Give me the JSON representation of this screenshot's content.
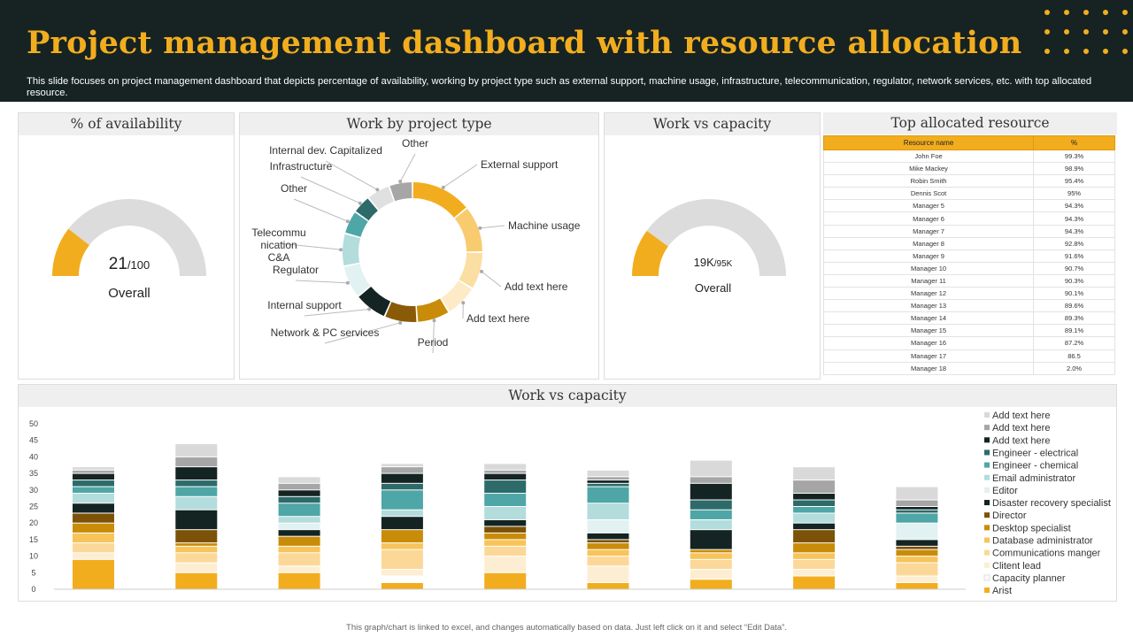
{
  "header": {
    "title": "Project management dashboard with resource allocation",
    "subtitle": "This slide focuses on project management dashboard that depicts percentage of availability, working by project type  such as external support, machine usage, infrastructure, telecommunication, regulator, network services, etc. with top allocated resource."
  },
  "availability": {
    "title": "% of availability",
    "value": "21",
    "total": "/100",
    "label": "Overall",
    "fraction": 0.21
  },
  "project_type": {
    "title": "Work by project type"
  },
  "capacity_gauge": {
    "title": "Work vs capacity",
    "value": "19K",
    "total": "/95K",
    "label": "Overall",
    "fraction": 0.2
  },
  "resources": {
    "title": "Top allocated resource",
    "columns": [
      "Resource name",
      "%"
    ],
    "rows": [
      [
        "John Foe",
        "99.3%"
      ],
      [
        "Mike Mackey",
        "98.9%"
      ],
      [
        "Robin Smith",
        "95.4%"
      ],
      [
        "Dennis Scot",
        "95%"
      ],
      [
        "Manager  5",
        "94.3%"
      ],
      [
        "Manager  6",
        "94.3%"
      ],
      [
        "Manager  7",
        "94.3%"
      ],
      [
        "Manager  8",
        "92.8%"
      ],
      [
        "Manager  9",
        "91.6%"
      ],
      [
        "Manager  10",
        "90.7%"
      ],
      [
        "Manager  11",
        "90.3%"
      ],
      [
        "Manager  12",
        "90.1%"
      ],
      [
        "Manager  13",
        "89.6%"
      ],
      [
        "Manager  14",
        "89.3%"
      ],
      [
        "Manager  15",
        "89.1%"
      ],
      [
        "Manager  16",
        "87.2%"
      ],
      [
        "Manager  17",
        "86.5"
      ],
      [
        "Manager  18",
        "2.0%"
      ]
    ]
  },
  "stack_chart": {
    "title": "Work vs capacity"
  },
  "footer": {
    "text": "This graph/chart is linked to excel, and changes automatically based on data. Just left click on it and select “Edit Data”."
  },
  "chart_data": [
    {
      "type": "pie",
      "variant": "donut",
      "categories": [
        "External support",
        "Machine usage",
        "Add text here",
        "Add text here",
        "Period",
        "Network & PC services",
        "Internal support",
        "Regulator",
        "Telecommu nication C&A",
        "Other",
        "Infrastructure",
        "Internal dev. Capitalized",
        "Other"
      ],
      "values": [
        13,
        10,
        8,
        7,
        7,
        7,
        7,
        7,
        7,
        5,
        4,
        5,
        5
      ],
      "colors": [
        "#f2ad1f",
        "#f8cc6e",
        "#fbdfa2",
        "#fdebc8",
        "#c98c09",
        "#8a5a08",
        "#142422",
        "#e2f1f1",
        "#b3dcdc",
        "#4fa6a6",
        "#2e6a6a",
        "#e0e0e0",
        "#a6a6a6"
      ]
    },
    {
      "type": "bar",
      "stacked": true,
      "title": "Work vs capacity",
      "categories": [
        "",
        "",
        "",
        "",
        "",
        "",
        "",
        "",
        ""
      ],
      "ylim": [
        0,
        50
      ],
      "yticks": [
        0,
        5,
        10,
        15,
        20,
        25,
        30,
        35,
        40,
        45,
        50
      ],
      "legend_position": "right",
      "series": [
        {
          "name": "Arist",
          "color": "#f2ad1f",
          "values": [
            9,
            5,
            5,
            2,
            5,
            2,
            3,
            4,
            2
          ]
        },
        {
          "name": "Capacity planner",
          "color": "#ffffff",
          "values": [
            0,
            0,
            0,
            2,
            0,
            0,
            0,
            0,
            0
          ]
        },
        {
          "name": "Clitent lead",
          "color": "#fdeed3",
          "values": [
            2,
            3,
            2,
            2,
            5,
            5,
            3,
            2,
            2
          ]
        },
        {
          "name": "Communications manger",
          "color": "#fbd898",
          "values": [
            3,
            3,
            4,
            6,
            3,
            3,
            3,
            3,
            4
          ]
        },
        {
          "name": "Database administrator",
          "color": "#f7c45b",
          "values": [
            3,
            2,
            2,
            2,
            2,
            2,
            2,
            2,
            2
          ]
        },
        {
          "name": "Desktop specialist",
          "color": "#c98c09",
          "values": [
            3,
            1,
            3,
            4,
            2,
            2,
            1,
            3,
            2
          ]
        },
        {
          "name": "Director",
          "color": "#7c5208",
          "values": [
            3,
            4,
            0,
            0,
            2,
            1,
            0,
            4,
            1
          ]
        },
        {
          "name": "Disaster recovery specialist",
          "color": "#142422",
          "values": [
            3,
            6,
            2,
            4,
            2,
            2,
            6,
            2,
            2
          ]
        },
        {
          "name": "Editor",
          "color": "#e2f1f1",
          "values": [
            0,
            0,
            2,
            0,
            0,
            4,
            0,
            0,
            5
          ]
        },
        {
          "name": "Email administrator",
          "color": "#b3dcdc",
          "values": [
            3,
            4,
            2,
            2,
            4,
            5,
            3,
            3,
            0
          ]
        },
        {
          "name": "Engineer - chemical",
          "color": "#4fa6a6",
          "values": [
            2,
            3,
            4,
            6,
            4,
            5,
            3,
            2,
            3
          ]
        },
        {
          "name": "Engineer - electrical",
          "color": "#2e6a6a",
          "values": [
            2,
            2,
            2,
            2,
            4,
            1,
            3,
            2,
            1
          ]
        },
        {
          "name": "Add text here",
          "color": "#142422",
          "values": [
            2,
            4,
            2,
            3,
            2,
            1,
            5,
            2,
            1
          ]
        },
        {
          "name": "Add text here",
          "color": "#a6a6a6",
          "values": [
            1,
            3,
            2,
            2,
            1,
            1,
            2,
            4,
            2
          ]
        },
        {
          "name": "Add text here",
          "color": "#d9d9d9",
          "values": [
            1,
            4,
            2,
            1,
            2,
            2,
            5,
            4,
            4
          ]
        }
      ]
    }
  ]
}
